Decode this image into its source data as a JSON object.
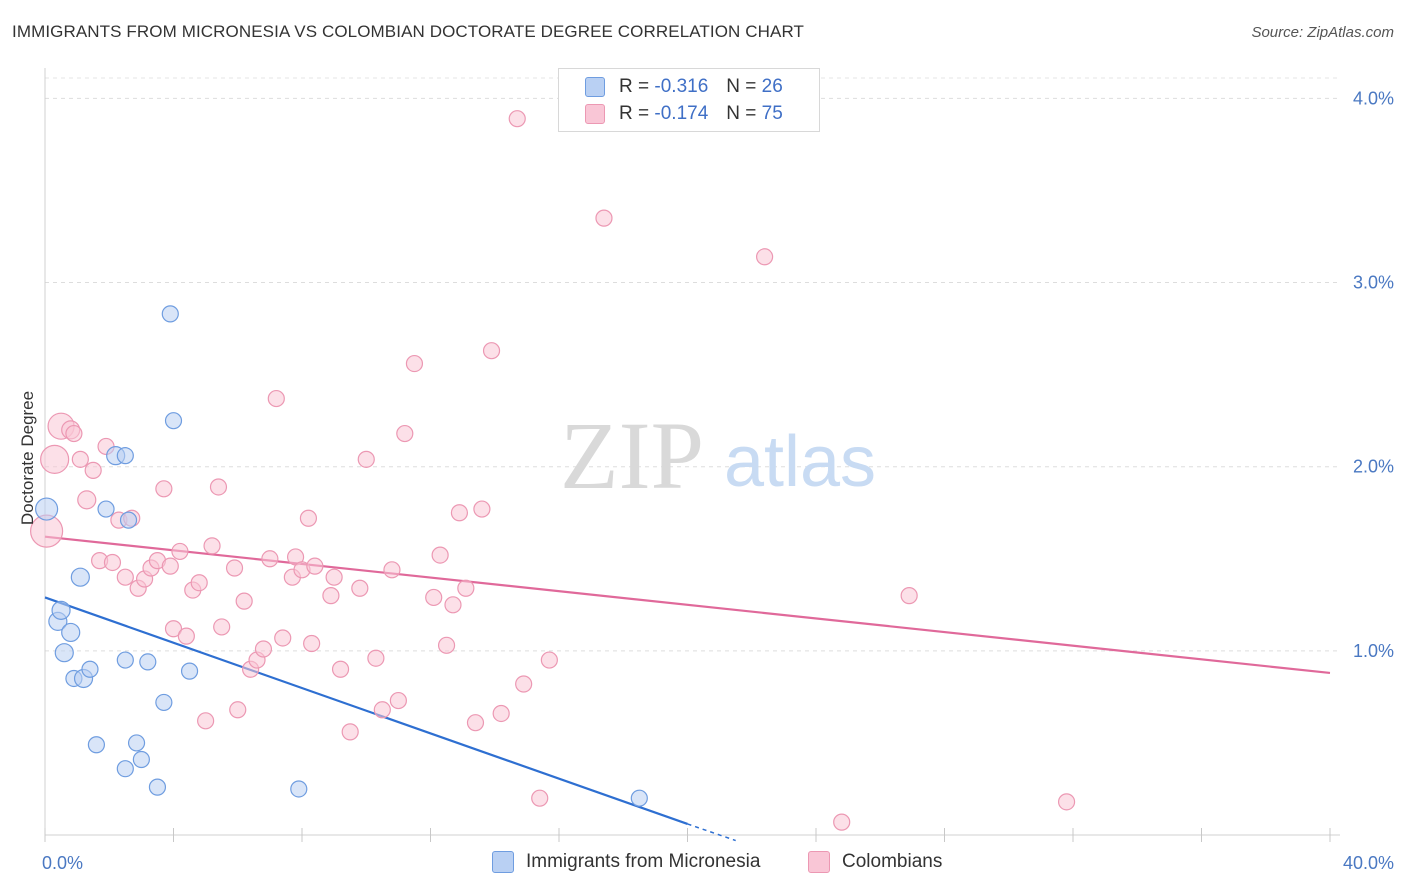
{
  "header": {
    "title": "IMMIGRANTS FROM MICRONESIA VS COLOMBIAN DOCTORATE DEGREE CORRELATION CHART",
    "source": "Source: ZipAtlas.com"
  },
  "watermark": {
    "zip": "ZIP",
    "atlas": "atlas"
  },
  "legend": {
    "r_label": "R = ",
    "n_label": "N = ",
    "series": [
      {
        "r": "-0.316",
        "n": "26"
      },
      {
        "r": "-0.174",
        "n": "75"
      }
    ]
  },
  "colors": {
    "blue_fill": "#b9d0f3",
    "blue_stroke": "#6f9de0",
    "blue_line": "#2e6fd1",
    "pink_fill": "#f9c6d6",
    "pink_stroke": "#ec98b3",
    "pink_line": "#e0699a",
    "tick_text": "#4a78c2"
  },
  "chart_data": {
    "type": "scatter",
    "title": "IMMIGRANTS FROM MICRONESIA VS COLOMBIAN DOCTORATE DEGREE CORRELATION CHART",
    "xlabel": "",
    "ylabel": "Doctorate Degree",
    "xlim": [
      0,
      40
    ],
    "ylim": [
      0,
      4.1
    ],
    "x_tick_labels": [
      "0.0%",
      "40.0%"
    ],
    "y_ticks": [
      1,
      2,
      3,
      4
    ],
    "y_tick_labels": [
      "1.0%",
      "2.0%",
      "3.0%",
      "4.0%"
    ],
    "grid": true,
    "legend_position": "top-center",
    "series": [
      {
        "name": "Immigrants from Micronesia",
        "r": -0.316,
        "n": 26,
        "trend": {
          "x": [
            0,
            20
          ],
          "y": [
            1.29,
            0.06
          ],
          "dashed_to": [
            21.5,
            -0.03
          ]
        },
        "points": [
          {
            "x": 0.05,
            "y": 1.77,
            "s": 11
          },
          {
            "x": 0.4,
            "y": 1.16,
            "s": 9
          },
          {
            "x": 0.5,
            "y": 1.22,
            "s": 9
          },
          {
            "x": 0.6,
            "y": 0.99,
            "s": 9
          },
          {
            "x": 0.8,
            "y": 1.1,
            "s": 9
          },
          {
            "x": 0.9,
            "y": 0.85,
            "s": 8
          },
          {
            "x": 1.1,
            "y": 1.4,
            "s": 9
          },
          {
            "x": 1.2,
            "y": 0.85,
            "s": 9
          },
          {
            "x": 1.4,
            "y": 0.9,
            "s": 8
          },
          {
            "x": 1.6,
            "y": 0.49,
            "s": 8
          },
          {
            "x": 1.9,
            "y": 1.77,
            "s": 8
          },
          {
            "x": 2.2,
            "y": 2.06,
            "s": 9
          },
          {
            "x": 2.5,
            "y": 0.95,
            "s": 8
          },
          {
            "x": 2.5,
            "y": 2.06,
            "s": 8
          },
          {
            "x": 2.5,
            "y": 0.36,
            "s": 8
          },
          {
            "x": 2.6,
            "y": 1.71,
            "s": 8
          },
          {
            "x": 2.85,
            "y": 0.5,
            "s": 8
          },
          {
            "x": 3.0,
            "y": 0.41,
            "s": 8
          },
          {
            "x": 3.2,
            "y": 0.94,
            "s": 8
          },
          {
            "x": 3.5,
            "y": 0.26,
            "s": 8
          },
          {
            "x": 3.7,
            "y": 0.72,
            "s": 8
          },
          {
            "x": 3.9,
            "y": 2.83,
            "s": 8
          },
          {
            "x": 4.0,
            "y": 2.25,
            "s": 8
          },
          {
            "x": 4.5,
            "y": 0.89,
            "s": 8
          },
          {
            "x": 7.9,
            "y": 0.25,
            "s": 8
          },
          {
            "x": 18.5,
            "y": 0.2,
            "s": 8
          }
        ]
      },
      {
        "name": "Colombians",
        "r": -0.174,
        "n": 75,
        "trend": {
          "x": [
            0,
            40
          ],
          "y": [
            1.62,
            0.88
          ]
        },
        "points": [
          {
            "x": 0.05,
            "y": 1.65,
            "s": 16
          },
          {
            "x": 0.3,
            "y": 2.04,
            "s": 14
          },
          {
            "x": 0.5,
            "y": 2.22,
            "s": 13
          },
          {
            "x": 0.8,
            "y": 2.2,
            "s": 9
          },
          {
            "x": 0.9,
            "y": 2.18,
            "s": 8
          },
          {
            "x": 1.1,
            "y": 2.04,
            "s": 8
          },
          {
            "x": 1.3,
            "y": 1.82,
            "s": 9
          },
          {
            "x": 1.5,
            "y": 1.98,
            "s": 8
          },
          {
            "x": 1.7,
            "y": 1.49,
            "s": 8
          },
          {
            "x": 1.9,
            "y": 2.11,
            "s": 8
          },
          {
            "x": 2.1,
            "y": 1.48,
            "s": 8
          },
          {
            "x": 2.3,
            "y": 1.71,
            "s": 8
          },
          {
            "x": 2.5,
            "y": 1.4,
            "s": 8
          },
          {
            "x": 2.7,
            "y": 1.72,
            "s": 8
          },
          {
            "x": 2.9,
            "y": 1.34,
            "s": 8
          },
          {
            "x": 3.1,
            "y": 1.39,
            "s": 8
          },
          {
            "x": 3.3,
            "y": 1.45,
            "s": 8
          },
          {
            "x": 3.5,
            "y": 1.49,
            "s": 8
          },
          {
            "x": 3.7,
            "y": 1.88,
            "s": 8
          },
          {
            "x": 3.9,
            "y": 1.46,
            "s": 8
          },
          {
            "x": 4.0,
            "y": 1.12,
            "s": 8
          },
          {
            "x": 4.2,
            "y": 1.54,
            "s": 8
          },
          {
            "x": 4.4,
            "y": 1.08,
            "s": 8
          },
          {
            "x": 4.6,
            "y": 1.33,
            "s": 8
          },
          {
            "x": 4.8,
            "y": 1.37,
            "s": 8
          },
          {
            "x": 5.0,
            "y": 0.62,
            "s": 8
          },
          {
            "x": 5.2,
            "y": 1.57,
            "s": 8
          },
          {
            "x": 5.4,
            "y": 1.89,
            "s": 8
          },
          {
            "x": 5.5,
            "y": 1.13,
            "s": 8
          },
          {
            "x": 5.9,
            "y": 1.45,
            "s": 8
          },
          {
            "x": 6.0,
            "y": 0.68,
            "s": 8
          },
          {
            "x": 6.2,
            "y": 1.27,
            "s": 8
          },
          {
            "x": 6.4,
            "y": 0.9,
            "s": 8
          },
          {
            "x": 6.6,
            "y": 0.95,
            "s": 8
          },
          {
            "x": 6.8,
            "y": 1.01,
            "s": 8
          },
          {
            "x": 7.0,
            "y": 1.5,
            "s": 8
          },
          {
            "x": 7.2,
            "y": 2.37,
            "s": 8
          },
          {
            "x": 7.4,
            "y": 1.07,
            "s": 8
          },
          {
            "x": 7.7,
            "y": 1.4,
            "s": 8
          },
          {
            "x": 7.8,
            "y": 1.51,
            "s": 8
          },
          {
            "x": 8.0,
            "y": 1.44,
            "s": 8
          },
          {
            "x": 8.2,
            "y": 1.72,
            "s": 8
          },
          {
            "x": 8.3,
            "y": 1.04,
            "s": 8
          },
          {
            "x": 8.4,
            "y": 1.46,
            "s": 8
          },
          {
            "x": 8.9,
            "y": 1.3,
            "s": 8
          },
          {
            "x": 9.0,
            "y": 1.4,
            "s": 8
          },
          {
            "x": 9.2,
            "y": 0.9,
            "s": 8
          },
          {
            "x": 9.5,
            "y": 0.56,
            "s": 8
          },
          {
            "x": 9.8,
            "y": 1.34,
            "s": 8
          },
          {
            "x": 10.0,
            "y": 2.04,
            "s": 8
          },
          {
            "x": 10.3,
            "y": 0.96,
            "s": 8
          },
          {
            "x": 10.5,
            "y": 0.68,
            "s": 8
          },
          {
            "x": 10.8,
            "y": 1.44,
            "s": 8
          },
          {
            "x": 11.0,
            "y": 0.73,
            "s": 8
          },
          {
            "x": 11.2,
            "y": 2.18,
            "s": 8
          },
          {
            "x": 11.5,
            "y": 2.56,
            "s": 8
          },
          {
            "x": 12.1,
            "y": 1.29,
            "s": 8
          },
          {
            "x": 12.3,
            "y": 1.52,
            "s": 8
          },
          {
            "x": 12.5,
            "y": 1.03,
            "s": 8
          },
          {
            "x": 12.7,
            "y": 1.25,
            "s": 8
          },
          {
            "x": 12.9,
            "y": 1.75,
            "s": 8
          },
          {
            "x": 13.1,
            "y": 1.34,
            "s": 8
          },
          {
            "x": 13.4,
            "y": 0.61,
            "s": 8
          },
          {
            "x": 13.6,
            "y": 1.77,
            "s": 8
          },
          {
            "x": 13.9,
            "y": 2.63,
            "s": 8
          },
          {
            "x": 14.2,
            "y": 0.66,
            "s": 8
          },
          {
            "x": 14.7,
            "y": 3.89,
            "s": 8
          },
          {
            "x": 14.9,
            "y": 0.82,
            "s": 8
          },
          {
            "x": 15.4,
            "y": 0.2,
            "s": 8
          },
          {
            "x": 15.7,
            "y": 0.95,
            "s": 8
          },
          {
            "x": 17.4,
            "y": 3.35,
            "s": 8
          },
          {
            "x": 22.4,
            "y": 3.14,
            "s": 8
          },
          {
            "x": 24.8,
            "y": 0.07,
            "s": 8
          },
          {
            "x": 26.9,
            "y": 1.3,
            "s": 8
          },
          {
            "x": 31.8,
            "y": 0.18,
            "s": 8
          }
        ]
      }
    ]
  }
}
